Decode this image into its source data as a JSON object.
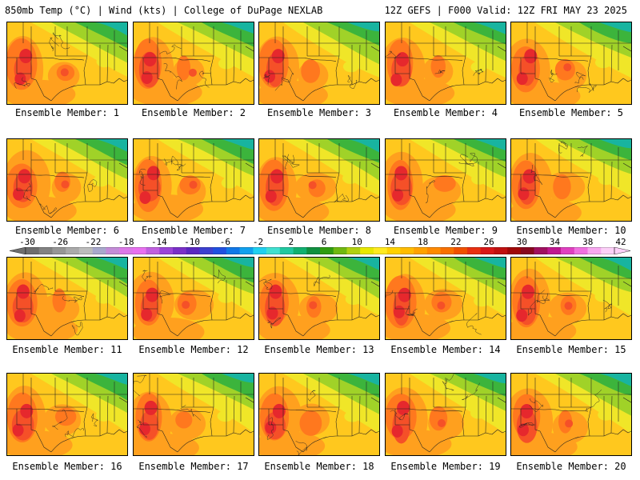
{
  "header": {
    "left": "850mb Temp (°C) | Wind (kts) | College of DuPage NEXLAB",
    "right": "12Z GEFS | F000 Valid: 12Z FRI MAY 23 2025"
  },
  "panels": [
    {
      "caption": "Ensemble Member: 1"
    },
    {
      "caption": "Ensemble Member: 2"
    },
    {
      "caption": "Ensemble Member: 3"
    },
    {
      "caption": "Ensemble Member: 4"
    },
    {
      "caption": "Ensemble Member: 5"
    },
    {
      "caption": "Ensemble Member: 6"
    },
    {
      "caption": "Ensemble Member: 7"
    },
    {
      "caption": "Ensemble Member: 8"
    },
    {
      "caption": "Ensemble Member: 9"
    },
    {
      "caption": "Ensemble Member: 10"
    },
    {
      "caption": "Ensemble Member: 11"
    },
    {
      "caption": "Ensemble Member: 12"
    },
    {
      "caption": "Ensemble Member: 13"
    },
    {
      "caption": "Ensemble Member: 14"
    },
    {
      "caption": "Ensemble Member: 15"
    },
    {
      "caption": "Ensemble Member: 16"
    },
    {
      "caption": "Ensemble Member: 17"
    },
    {
      "caption": "Ensemble Member: 18"
    },
    {
      "caption": "Ensemble Member: 19"
    },
    {
      "caption": "Ensemble Member: 20"
    }
  ],
  "color_scale": {
    "tick_labels": [
      "-30",
      "-26",
      "-22",
      "-18",
      "-14",
      "-10",
      "-6",
      "-2",
      "2",
      "6",
      "10",
      "14",
      "18",
      "22",
      "26",
      "30",
      "34",
      "38",
      "42"
    ],
    "colors": [
      "#6e6e6e",
      "#828282",
      "#969696",
      "#aaaaaa",
      "#bcbcbc",
      "#a8a8cc",
      "#c48cd8",
      "#dc78e8",
      "#e870f0",
      "#c060e0",
      "#9a44d8",
      "#7a30c8",
      "#5a28c0",
      "#3c40d0",
      "#2050e0",
      "#1078e8",
      "#10a0ee",
      "#20d0f0",
      "#40e0d0",
      "#20c8a0",
      "#10b070",
      "#109040",
      "#309c10",
      "#70b810",
      "#b0d010",
      "#e8e800",
      "#ffea20",
      "#ffd200",
      "#ffbc00",
      "#ffa200",
      "#ff8a00",
      "#f87000",
      "#f05000",
      "#e83010",
      "#d81818",
      "#c01010",
      "#a00808",
      "#880820",
      "#a01060",
      "#c01890",
      "#e040c0",
      "#f070e0",
      "#f8a8f0",
      "#fcd0f8"
    ]
  },
  "map_colors": {
    "teal": "#18b4a0",
    "green": "#3cb43c",
    "light_green": "#a0d228",
    "yellow": "#f0e628",
    "gold": "#ffc81e",
    "orange": "#ffa01e",
    "dark_orange": "#ff781e",
    "red_orange": "#f55028",
    "red": "#e6282d",
    "boundary": "#1e1e1e"
  }
}
